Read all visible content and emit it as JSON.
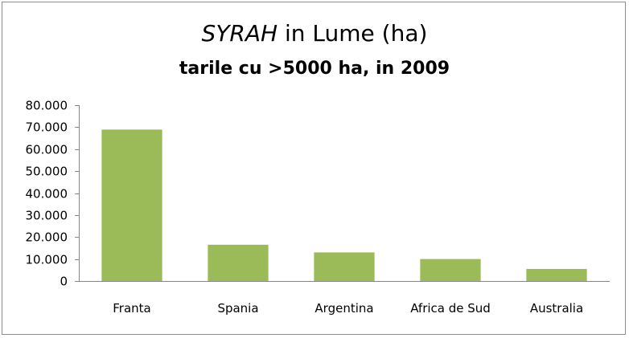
{
  "chart_data": {
    "type": "bar",
    "title_emphasis": "SYRAH",
    "title_rest": " in Lume (ha)",
    "subtitle": "tarile cu >5000 ha, in 2009",
    "categories": [
      "Franta",
      "Spania",
      "Argentina",
      "Africa de Sud",
      "Australia"
    ],
    "values": [
      68900,
      16500,
      13000,
      10000,
      5500
    ],
    "ylim": [
      0,
      80000
    ],
    "yticks": [
      0,
      10000,
      20000,
      30000,
      40000,
      50000,
      60000,
      70000,
      80000
    ],
    "ytick_labels": [
      "0",
      "10.000",
      "20.000",
      "30.000",
      "40.000",
      "50.000",
      "60.000",
      "70.000",
      "80.000"
    ],
    "grid": false,
    "legend": "none",
    "bar_color": "#9bbb59"
  }
}
